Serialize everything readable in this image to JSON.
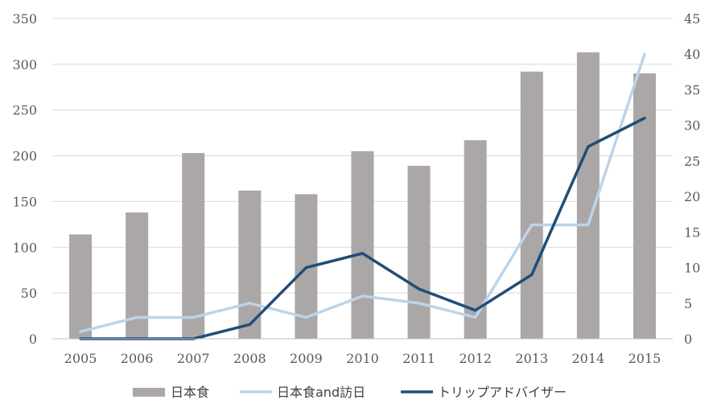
{
  "chart_data": {
    "type": "bar",
    "categories": [
      "2005",
      "2006",
      "2007",
      "2008",
      "2009",
      "2010",
      "2011",
      "2012",
      "2013",
      "2014",
      "2015"
    ],
    "series": [
      {
        "name": "日本食",
        "kind": "bar",
        "axis": "left",
        "color": "#aba7a6",
        "values": [
          114,
          138,
          203,
          162,
          158,
          205,
          189,
          217,
          292,
          313,
          290
        ]
      },
      {
        "name": "日本食and訪日",
        "kind": "line",
        "axis": "right",
        "color": "#bcd4ea",
        "values": [
          1,
          3,
          3,
          5,
          3,
          6,
          5,
          3,
          16,
          16,
          40
        ]
      },
      {
        "name": "トリップアドバイザー",
        "kind": "line",
        "axis": "right",
        "color": "#1f4e79",
        "values": [
          0,
          0,
          0,
          2,
          10,
          12,
          7,
          4,
          9,
          27,
          31
        ]
      }
    ],
    "y_left": {
      "range": [
        0,
        350
      ],
      "ticks": [
        "0",
        "50",
        "100",
        "150",
        "200",
        "250",
        "300",
        "350"
      ]
    },
    "y_right": {
      "range": [
        0,
        45
      ],
      "ticks": [
        "0",
        "5",
        "10",
        "15",
        "20",
        "25",
        "30",
        "35",
        "40",
        "45"
      ]
    },
    "grid": true,
    "legend_position": "bottom"
  }
}
